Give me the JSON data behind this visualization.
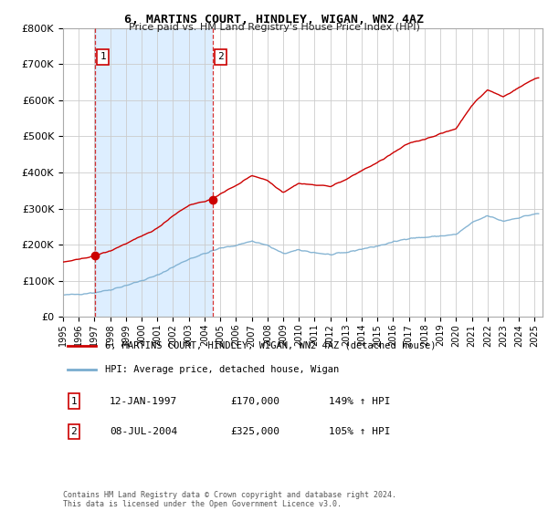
{
  "title": "6, MARTINS COURT, HINDLEY, WIGAN, WN2 4AZ",
  "subtitle": "Price paid vs. HM Land Registry's House Price Index (HPI)",
  "ylim": [
    0,
    800000
  ],
  "yticks": [
    0,
    100000,
    200000,
    300000,
    400000,
    500000,
    600000,
    700000,
    800000
  ],
  "xlim_start": 1995.0,
  "xlim_end": 2025.5,
  "sale1_year": 1997.04,
  "sale1_price": 170000,
  "sale2_year": 2004.52,
  "sale2_price": 325000,
  "property_label": "6, MARTINS COURT, HINDLEY, WIGAN, WN2 4AZ (detached house)",
  "hpi_label": "HPI: Average price, detached house, Wigan",
  "sale1_date": "12-JAN-1997",
  "sale1_amount": "£170,000",
  "sale1_hpi": "149% ↑ HPI",
  "sale2_date": "08-JUL-2004",
  "sale2_amount": "£325,000",
  "sale2_hpi": "105% ↑ HPI",
  "property_color": "#cc0000",
  "hpi_color": "#7aadcf",
  "shade_color": "#ddeeff",
  "copyright_text": "Contains HM Land Registry data © Crown copyright and database right 2024.\nThis data is licensed under the Open Government Licence v3.0.",
  "background_color": "#ffffff",
  "grid_color": "#cccccc"
}
